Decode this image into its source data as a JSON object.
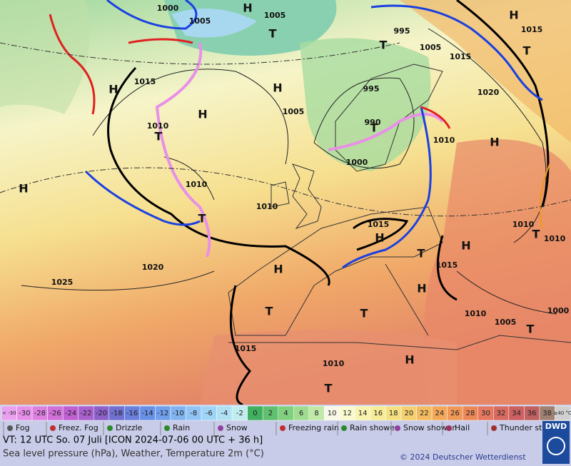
{
  "map": {
    "pressure_labels": [
      "1000",
      "1005",
      "1005",
      "995",
      "1015",
      "1005",
      "1015",
      "1015",
      "995",
      "1005",
      "1020",
      "1010",
      "990",
      "1010",
      "1000",
      "1010",
      "1010",
      "1015",
      "1010",
      "1010",
      "1020",
      "1025",
      "1015",
      "1010",
      "1005",
      "1000",
      "1015",
      "1010"
    ],
    "pressure_centers": [
      "H",
      "H",
      "T",
      "T",
      "H",
      "H",
      "H",
      "T",
      "T",
      "H",
      "H",
      "T",
      "H",
      "T",
      "H",
      "H",
      "T",
      "T",
      "T",
      "H",
      "T",
      "H",
      "T",
      "T"
    ]
  },
  "color_scale": [
    {
      "label": "< -30",
      "color": "#e9a0ee"
    },
    {
      "label": "-30",
      "color": "#e68fe8"
    },
    {
      "label": "-28",
      "color": "#dd80e0"
    },
    {
      "label": "-26",
      "color": "#d070d8"
    },
    {
      "label": "-24",
      "color": "#c060d0"
    },
    {
      "label": "-22",
      "color": "#a860cc"
    },
    {
      "label": "-20",
      "color": "#8c60c8"
    },
    {
      "label": "-18",
      "color": "#7070d0"
    },
    {
      "label": "-16",
      "color": "#6a80dc"
    },
    {
      "label": "-14",
      "color": "#6a90e6"
    },
    {
      "label": "-12",
      "color": "#70a0ec"
    },
    {
      "label": "-10",
      "color": "#80b4f0"
    },
    {
      "label": "-8",
      "color": "#90c4f4"
    },
    {
      "label": "-6",
      "color": "#a0d4f6"
    },
    {
      "label": "-4",
      "color": "#b0e0f4"
    },
    {
      "label": "-2",
      "color": "#c0ecf0"
    },
    {
      "label": "0",
      "color": "#40b060"
    },
    {
      "label": "2",
      "color": "#60c070"
    },
    {
      "label": "4",
      "color": "#80d080"
    },
    {
      "label": "6",
      "color": "#a0dc90"
    },
    {
      "label": "8",
      "color": "#c0e8a8"
    },
    {
      "label": "10",
      "color": "#f8f8e8"
    },
    {
      "label": "12",
      "color": "#fafad0"
    },
    {
      "label": "14",
      "color": "#f8f4b0"
    },
    {
      "label": "16",
      "color": "#f6ec98"
    },
    {
      "label": "18",
      "color": "#f4e080"
    },
    {
      "label": "20",
      "color": "#f4d070"
    },
    {
      "label": "22",
      "color": "#f4bc60"
    },
    {
      "label": "24",
      "color": "#f2a858"
    },
    {
      "label": "26",
      "color": "#f09858"
    },
    {
      "label": "28",
      "color": "#ec8858"
    },
    {
      "label": "30",
      "color": "#e47860"
    },
    {
      "label": "32",
      "color": "#d86a60"
    },
    {
      "label": "34",
      "color": "#cc6060"
    },
    {
      "label": "36",
      "color": "#c06060"
    },
    {
      "label": "38",
      "color": "#a08070"
    },
    {
      "label": "≥40 °C",
      "color": "#d0d0d0"
    }
  ],
  "weather_legend": [
    "Fog",
    "Freez. Fog",
    "Drizzle",
    "Rain",
    "Snow",
    "Freezing rain",
    "Rain shower",
    "Snow shower",
    "Hail",
    "Thunder storm"
  ],
  "footer": {
    "valid_time": "VT: 12 UTC So.  07 Juli [ICON 2024-07-06  00 UTC + 36 h]",
    "description": "Sea level pressure (hPa), Weather, Temperature 2m (°C)",
    "copyright": "© 2024 Deutscher Wetterdienst",
    "logo": "DWD"
  }
}
